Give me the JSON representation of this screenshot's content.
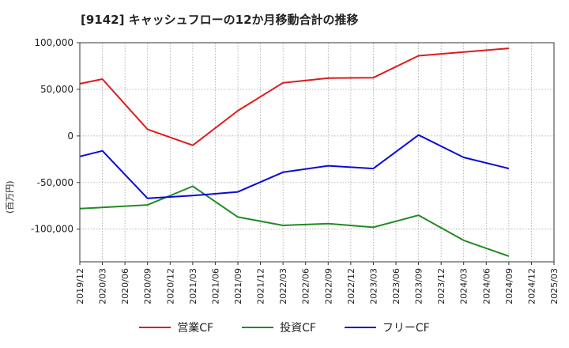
{
  "chart_data": {
    "type": "line",
    "title": "[9142]  キャッシュフローの12か月移動合計の推移",
    "ylabel": "(百万円)",
    "xlabel": "",
    "ylim": [
      -135000,
      100000
    ],
    "yticks": [
      100000,
      50000,
      0,
      -50000,
      -100000
    ],
    "ytick_labels": [
      "100,000",
      "50,000",
      "0",
      "-50,000",
      "-100,000"
    ],
    "categories": [
      "2019/12",
      "2020/03",
      "2020/06",
      "2020/09",
      "2020/12",
      "2021/03",
      "2021/06",
      "2021/09",
      "2021/12",
      "2022/03",
      "2022/06",
      "2022/09",
      "2022/12",
      "2023/03",
      "2023/06",
      "2023/09",
      "2023/12",
      "2024/03",
      "2024/06",
      "2024/09",
      "2024/12",
      "2025/03"
    ],
    "series": [
      {
        "name": "営業CF",
        "color": "#dd1c1c",
        "values": [
          56000,
          61000,
          null,
          7000,
          null,
          -10000,
          null,
          27000,
          null,
          57000,
          null,
          62000,
          null,
          62500,
          null,
          86000,
          null,
          null,
          null,
          94000,
          null,
          null
        ]
      },
      {
        "name": "投資CF",
        "color": "#228b22",
        "values": [
          -78000,
          null,
          null,
          -74000,
          null,
          -54000,
          null,
          -87000,
          null,
          -96000,
          null,
          -94000,
          null,
          -98000,
          null,
          -85000,
          null,
          -112000,
          null,
          -129000,
          null,
          null
        ]
      },
      {
        "name": "フリーCF",
        "color": "#0a0ad8",
        "values": [
          -22000,
          -16000,
          null,
          -67000,
          null,
          -64000,
          null,
          -60000,
          null,
          -39000,
          null,
          -32000,
          null,
          -35000,
          null,
          1000,
          null,
          -23000,
          null,
          -35000,
          null,
          null
        ]
      }
    ],
    "grid": true,
    "legend": "bottom"
  }
}
